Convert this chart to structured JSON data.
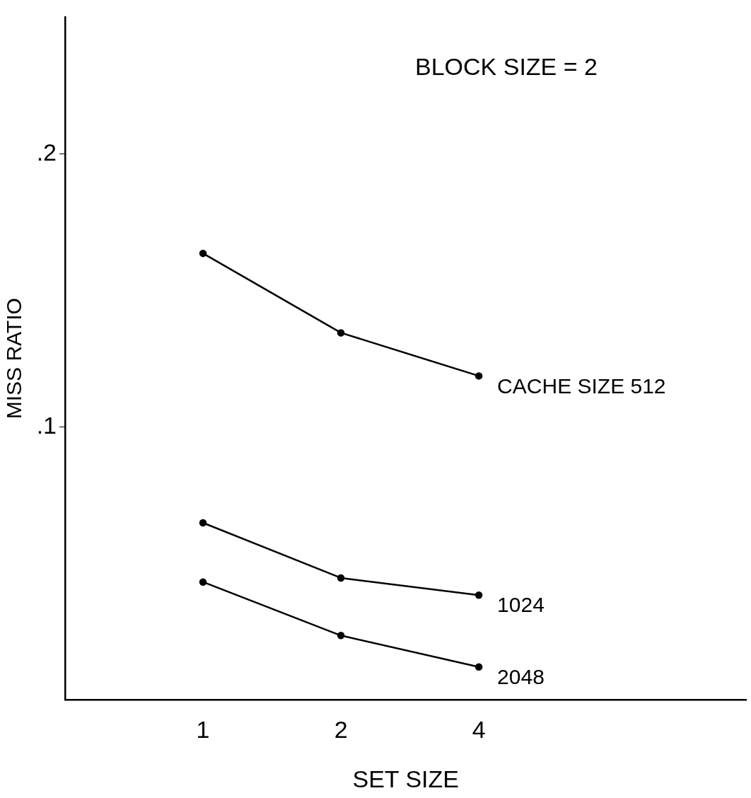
{
  "chart_data": {
    "type": "line",
    "xlabel": "SET SIZE",
    "ylabel": "MISS RATIO",
    "annotations": [
      "BLOCK SIZE = 2"
    ],
    "categories": [
      "1",
      "2",
      "4"
    ],
    "ylim": [
      0,
      0.25
    ],
    "yticks": [
      {
        "value": 0.1,
        "label": ".1"
      },
      {
        "value": 0.2,
        "label": ".2"
      }
    ],
    "grid": false,
    "legend": false,
    "marker": "circle",
    "line_style": "solid",
    "series": [
      {
        "name": "CACHE SIZE 512",
        "color": "#000000",
        "values": [
          0.1635,
          0.1344,
          0.1186
        ]
      },
      {
        "name": "1024",
        "color": "#000000",
        "values": [
          0.0648,
          0.0446,
          0.0383
        ]
      },
      {
        "name": "2048",
        "color": "#000000",
        "values": [
          0.0431,
          0.0235,
          0.012
        ]
      }
    ]
  }
}
